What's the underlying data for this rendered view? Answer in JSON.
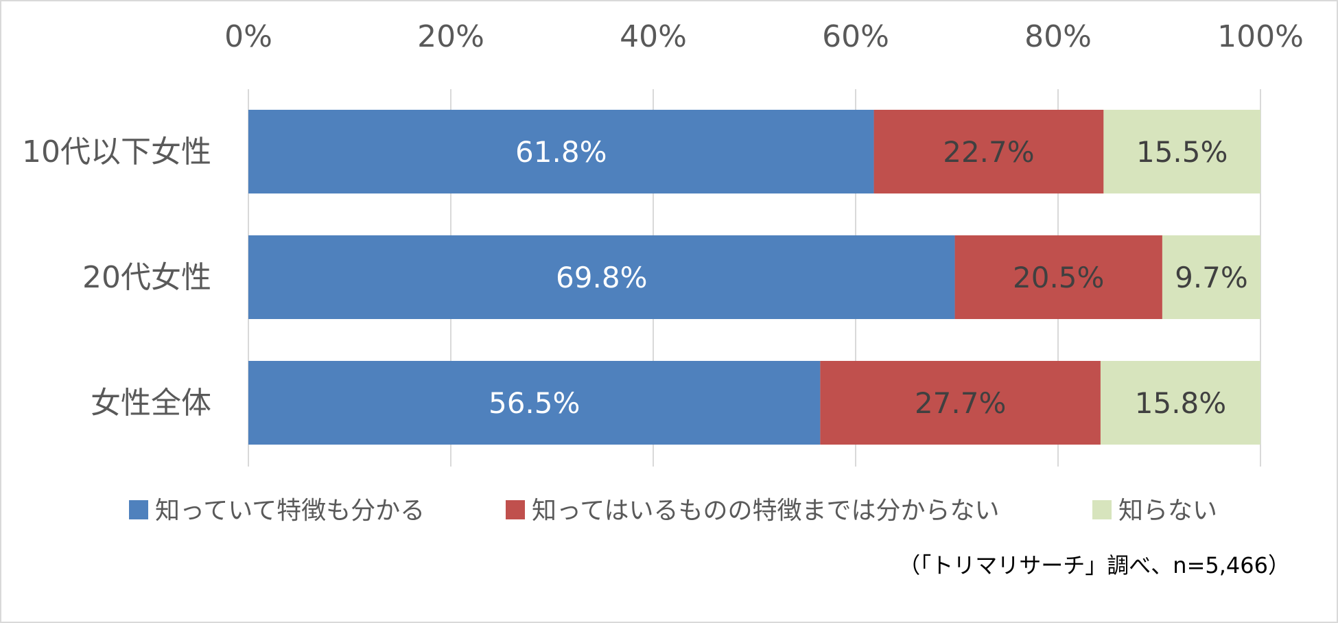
{
  "chart_data": {
    "type": "bar",
    "orientation": "horizontal",
    "stacked": "percent",
    "categories": [
      "10代以下女性",
      "20代女性",
      "女性全体"
    ],
    "series": [
      {
        "name": "知っていて特徴も分かる",
        "values": [
          61.8,
          69.8,
          56.5
        ],
        "color": "#4F81BD",
        "label_color": "#ffffff"
      },
      {
        "name": "知ってはいるものの特徴までは分からない",
        "values": [
          22.7,
          20.5,
          27.7
        ],
        "color": "#C0504D",
        "label_color": "#404040"
      },
      {
        "name": "知らない",
        "values": [
          15.5,
          9.7,
          15.8
        ],
        "color": "#D7E4BD",
        "label_color": "#404040"
      }
    ],
    "data_labels": [
      [
        "61.8%",
        "69.8%",
        "56.5%"
      ],
      [
        "22.7%",
        "20.5%",
        "27.7%"
      ],
      [
        "15.5%",
        "9.7%",
        "15.8%"
      ]
    ],
    "xlim": [
      0,
      100
    ],
    "x_ticks": [
      0,
      20,
      40,
      60,
      80,
      100
    ],
    "x_tick_labels": [
      "0%",
      "20%",
      "40%",
      "60%",
      "80%",
      "100%"
    ],
    "x_axis_position": "top",
    "grid": true,
    "grid_color": "#d9d9d9",
    "legend_position": "bottom",
    "note": "（「トリマリサーチ」調べ、n=5,466）"
  }
}
